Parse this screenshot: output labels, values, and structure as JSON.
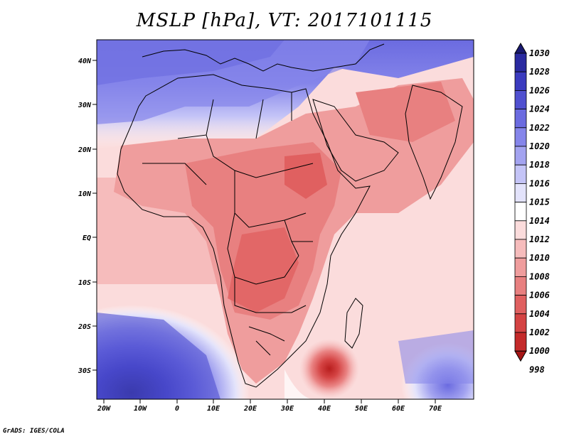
{
  "title": "MSLP [hPa], VT: 2017101115",
  "credit": "GrADS: IGES/COLA",
  "lat_labels": [
    "40N",
    "30N",
    "20N",
    "10N",
    "EQ",
    "10S",
    "20S",
    "30S"
  ],
  "lon_labels": [
    "20W",
    "10W",
    "0",
    "10E",
    "20E",
    "30E",
    "40E",
    "50E",
    "60E",
    "70E"
  ],
  "colorbar": {
    "levels": [
      "1030",
      "1028",
      "1026",
      "1024",
      "1022",
      "1020",
      "1018",
      "1016",
      "1015",
      "1014",
      "1012",
      "1010",
      "1008",
      "1006",
      "1004",
      "1002",
      "1000",
      "998"
    ],
    "colors": [
      "#191970",
      "#2a2aa0",
      "#3b3bbf",
      "#5050d0",
      "#6b6be0",
      "#8585ea",
      "#a3a3f0",
      "#c4c4f7",
      "#e3e3fb",
      "#ffffff",
      "#fbdcdc",
      "#f6bcbc",
      "#ef9d9d",
      "#e88080",
      "#e06060",
      "#d44343",
      "#c42a2a",
      "#a51515"
    ]
  },
  "features": {
    "low_center_label": "low-pressure center near 40E 30S"
  }
}
